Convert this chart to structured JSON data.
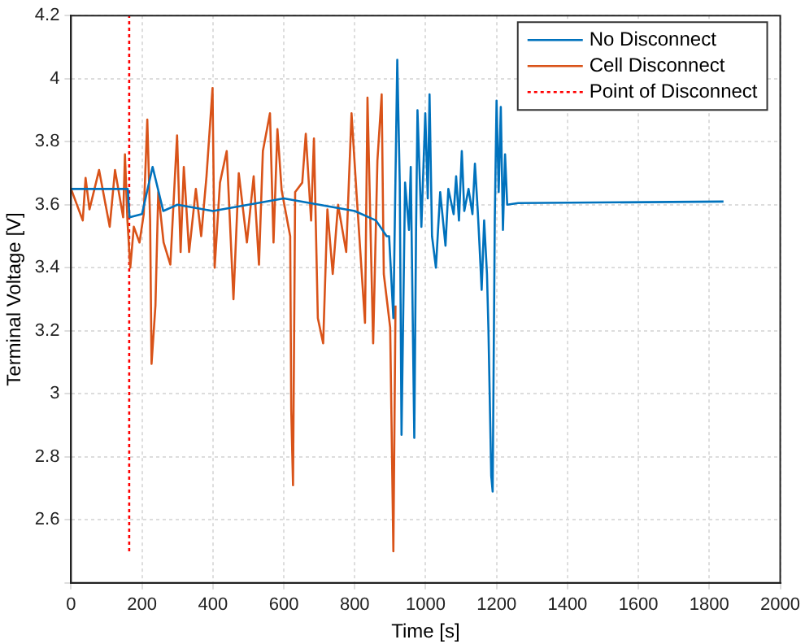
{
  "chart_data": {
    "type": "line",
    "xlabel": "Time [s]",
    "ylabel": "Terminal Voltage [V]",
    "xlim": [
      0,
      2000
    ],
    "xticks": [
      0,
      200,
      400,
      600,
      800,
      1000,
      1200,
      1400,
      1600,
      1800,
      2000
    ],
    "ylim": [
      2.4,
      4.2
    ],
    "yticks": [
      {
        "value": 2.4,
        "label": null
      },
      2.6,
      2.8,
      3,
      3.2,
      3.4,
      3.6,
      3.8,
      4,
      4.2
    ],
    "grid": true,
    "legend": "top right",
    "marker": "none",
    "series": [
      {
        "name": "No Disconnect",
        "color": "#0072bd",
        "x": [
          0,
          160,
          165,
          200,
          230,
          260,
          300,
          400,
          500,
          600,
          700,
          800,
          860,
          890,
          897,
          909,
          920,
          927,
          932,
          942,
          953,
          958,
          968,
          973,
          977,
          988,
          999,
          1006,
          1011,
          1018,
          1029,
          1041,
          1056,
          1064,
          1079,
          1086,
          1094,
          1102,
          1109,
          1121,
          1132,
          1139,
          1147,
          1152,
          1158,
          1165,
          1173,
          1177,
          1185,
          1189,
          1195,
          1200,
          1206,
          1212,
          1218,
          1224,
          1230,
          1261,
          1840
        ],
        "values": [
          3.65,
          3.65,
          3.56,
          3.57,
          3.72,
          3.58,
          3.6,
          3.58,
          3.6,
          3.62,
          3.6,
          3.58,
          3.55,
          3.5,
          3.5,
          3.24,
          4.06,
          3.67,
          2.87,
          3.67,
          3.52,
          3.72,
          2.86,
          3.52,
          3.9,
          3.53,
          3.89,
          3.62,
          3.95,
          3.5,
          3.4,
          3.64,
          3.47,
          3.65,
          3.57,
          3.69,
          3.55,
          3.77,
          3.58,
          3.65,
          3.57,
          3.73,
          3.58,
          3.47,
          3.33,
          3.55,
          3.38,
          3.21,
          2.74,
          2.69,
          3.55,
          3.93,
          3.64,
          3.91,
          3.52,
          3.76,
          3.6,
          3.605,
          3.61
        ]
      },
      {
        "name": "Cell Disconnect",
        "color": "#d95319",
        "x": [
          0,
          33,
          41,
          52,
          79,
          109,
          124,
          147,
          152,
          159,
          167,
          177,
          193,
          205,
          215,
          223,
          227,
          238,
          246,
          261,
          280,
          299,
          309,
          318,
          333,
          352,
          367,
          382,
          399,
          405,
          420,
          439,
          458,
          473,
          496,
          515,
          530,
          541,
          561,
          571,
          582,
          594,
          618,
          621,
          626,
          632,
          652,
          662,
          677,
          685,
          696,
          711,
          723,
          738,
          753,
          776,
          791,
          806,
          829,
          836,
          852,
          864,
          876,
          882,
          900,
          909,
          915
        ],
        "values": [
          3.65,
          3.55,
          3.685,
          3.585,
          3.71,
          3.53,
          3.71,
          3.56,
          3.76,
          3.55,
          3.4,
          3.53,
          3.48,
          3.57,
          3.87,
          3.55,
          3.095,
          3.28,
          3.64,
          3.48,
          3.41,
          3.82,
          3.45,
          3.72,
          3.45,
          3.65,
          3.5,
          3.69,
          3.97,
          3.4,
          3.67,
          3.77,
          3.3,
          3.7,
          3.48,
          3.69,
          3.41,
          3.77,
          3.89,
          3.48,
          3.84,
          3.645,
          3.5,
          2.95,
          2.71,
          3.64,
          3.67,
          3.825,
          3.55,
          3.81,
          3.24,
          3.16,
          3.585,
          3.38,
          3.6,
          3.45,
          3.89,
          3.62,
          3.225,
          3.94,
          3.16,
          3.74,
          3.95,
          3.38,
          3.21,
          2.5,
          3.28
        ]
      },
      {
        "name": "Point of Disconnect",
        "color": "#ff0000",
        "line_style": "dotted",
        "x": [
          164,
          164
        ],
        "values": [
          2.5,
          4.2
        ]
      }
    ]
  }
}
